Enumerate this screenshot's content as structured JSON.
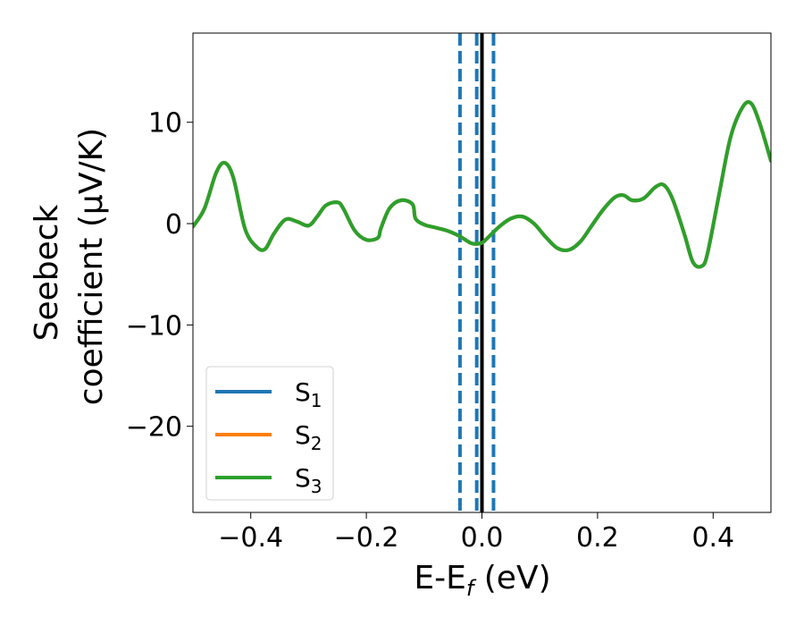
{
  "chart_data": {
    "type": "line",
    "xlabel_parts": [
      "E-E",
      "f",
      " (eV)"
    ],
    "ylabel_lines": [
      "Seebeck",
      "coefficient  (μV/K)"
    ],
    "xlim": [
      -0.5,
      0.5
    ],
    "ylim": [
      -28.5,
      18.8
    ],
    "xticks": [
      -0.4,
      -0.2,
      0.0,
      0.2,
      0.4
    ],
    "xtick_labels": [
      "−0.4",
      "−0.2",
      "0.0",
      "0.2",
      "0.4"
    ],
    "yticks": [
      10,
      0,
      -10,
      -20
    ],
    "ytick_labels": [
      "10",
      "0",
      "−10",
      "−20"
    ],
    "grid": false,
    "legend_placement": "lower-left",
    "vlines": [
      {
        "x": -0.038,
        "style": "dashed",
        "color": "#1f77b4"
      },
      {
        "x": -0.009,
        "style": "dashed",
        "color": "#1f77b4"
      },
      {
        "x": 0.02,
        "style": "dashed",
        "color": "#1f77b4"
      },
      {
        "x": 0.0,
        "style": "solid",
        "color": "#000000"
      }
    ],
    "x": [
      -0.5,
      -0.48,
      -0.46,
      -0.445,
      -0.43,
      -0.41,
      -0.39,
      -0.375,
      -0.36,
      -0.34,
      -0.32,
      -0.3,
      -0.285,
      -0.27,
      -0.25,
      -0.24,
      -0.22,
      -0.2,
      -0.18,
      -0.175,
      -0.16,
      -0.14,
      -0.12,
      -0.115,
      -0.1,
      -0.08,
      -0.06,
      -0.04,
      -0.02,
      -0.01,
      0.0,
      0.01,
      0.03,
      0.05,
      0.07,
      0.09,
      0.11,
      0.13,
      0.15,
      0.17,
      0.19,
      0.21,
      0.23,
      0.245,
      0.26,
      0.28,
      0.3,
      0.315,
      0.33,
      0.35,
      0.365,
      0.38,
      0.39,
      0.41,
      0.43,
      0.45,
      0.465,
      0.48,
      0.5
    ],
    "series": [
      {
        "name": "S",
        "sub": "1",
        "color": "#1f77b4",
        "values": [
          -0.3,
          1.5,
          5.0,
          6.0,
          4.5,
          -0.5,
          -2.3,
          -2.5,
          -1.0,
          0.4,
          0.2,
          -0.2,
          0.7,
          1.8,
          2.1,
          1.5,
          -0.7,
          -1.6,
          -1.4,
          -0.5,
          1.5,
          2.3,
          1.9,
          0.5,
          -0.1,
          -0.4,
          -0.7,
          -1.2,
          -1.9,
          -2.0,
          -1.9,
          -1.4,
          -0.3,
          0.5,
          0.7,
          0.0,
          -1.3,
          -2.4,
          -2.6,
          -1.8,
          -0.2,
          1.4,
          2.6,
          2.8,
          2.3,
          2.5,
          3.6,
          3.8,
          2.4,
          -1.0,
          -3.8,
          -4.2,
          -3.0,
          2.8,
          8.5,
          11.4,
          11.9,
          10.0,
          6.2
        ]
      },
      {
        "name": "S",
        "sub": "2",
        "color": "#ff7f0e",
        "values": [
          -0.3,
          1.5,
          5.0,
          6.0,
          4.5,
          -0.5,
          -2.3,
          -2.5,
          -1.0,
          0.4,
          0.2,
          -0.2,
          0.7,
          1.8,
          2.1,
          1.5,
          -0.7,
          -1.6,
          -1.4,
          -0.5,
          1.5,
          2.3,
          1.9,
          0.5,
          -0.1,
          -0.4,
          -0.7,
          -1.2,
          -1.9,
          -2.0,
          -1.9,
          -1.4,
          -0.3,
          0.5,
          0.7,
          0.0,
          -1.3,
          -2.4,
          -2.6,
          -1.8,
          -0.2,
          1.4,
          2.6,
          2.8,
          2.3,
          2.5,
          3.6,
          3.8,
          2.4,
          -1.0,
          -3.8,
          -4.2,
          -3.0,
          2.8,
          8.5,
          11.4,
          11.9,
          10.0,
          6.2
        ]
      },
      {
        "name": "S",
        "sub": "3",
        "color": "#2ca02c",
        "values": [
          -0.3,
          1.5,
          5.0,
          6.0,
          4.5,
          -0.5,
          -2.3,
          -2.5,
          -1.0,
          0.4,
          0.2,
          -0.2,
          0.7,
          1.8,
          2.1,
          1.5,
          -0.7,
          -1.6,
          -1.4,
          -0.5,
          1.5,
          2.3,
          1.9,
          0.5,
          -0.1,
          -0.4,
          -0.7,
          -1.2,
          -1.9,
          -2.0,
          -1.9,
          -1.4,
          -0.3,
          0.5,
          0.7,
          0.0,
          -1.3,
          -2.4,
          -2.6,
          -1.8,
          -0.2,
          1.4,
          2.6,
          2.8,
          2.3,
          2.5,
          3.6,
          3.8,
          2.4,
          -1.0,
          -3.8,
          -4.2,
          -3.0,
          2.8,
          8.5,
          11.4,
          11.9,
          10.0,
          6.2
        ]
      }
    ]
  }
}
